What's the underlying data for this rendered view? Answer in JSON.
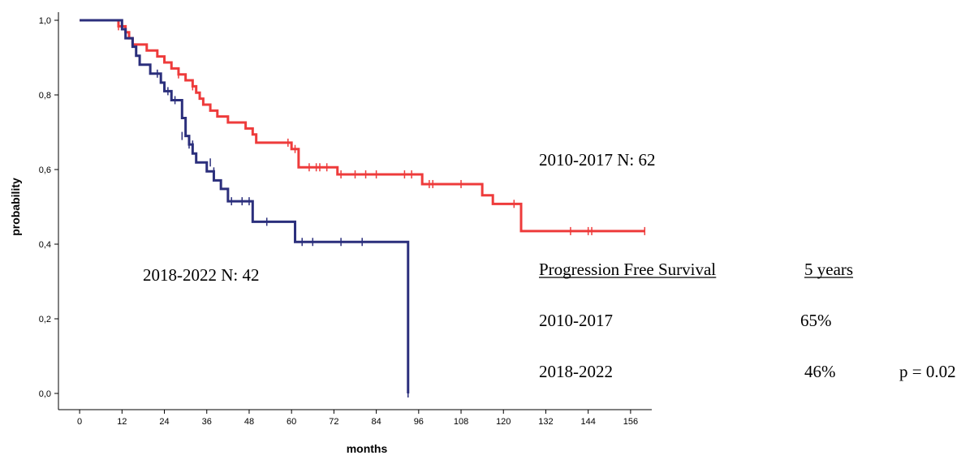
{
  "chart_data": {
    "type": "line",
    "xlabel": "months",
    "ylabel": "probability",
    "xlim": [
      -6,
      162
    ],
    "ylim": [
      0,
      1
    ],
    "xticks": [
      0,
      12,
      24,
      36,
      48,
      60,
      72,
      84,
      96,
      108,
      120,
      132,
      144,
      156
    ],
    "yticks": [
      0.0,
      0.2,
      0.4,
      0.6,
      0.8,
      1.0
    ],
    "ytick_labels": [
      "0,0",
      "0,2",
      "0,4",
      "0,6",
      "0,8",
      "1,0"
    ],
    "grid": false,
    "series": [
      {
        "name": "2010-2017",
        "label": "2010-2017  N: 62",
        "color": "#ee3b3b",
        "steps": [
          [
            0,
            1.0
          ],
          [
            11,
            0.984
          ],
          [
            13,
            0.968
          ],
          [
            14,
            0.952
          ],
          [
            15,
            0.935
          ],
          [
            19,
            0.919
          ],
          [
            22,
            0.903
          ],
          [
            24,
            0.887
          ],
          [
            26,
            0.871
          ],
          [
            28,
            0.855
          ],
          [
            30,
            0.839
          ],
          [
            32,
            0.823
          ],
          [
            33,
            0.806
          ],
          [
            34,
            0.79
          ],
          [
            35,
            0.774
          ],
          [
            37,
            0.758
          ],
          [
            39,
            0.742
          ],
          [
            42,
            0.726
          ],
          [
            47,
            0.71
          ],
          [
            49,
            0.694
          ],
          [
            50,
            0.672
          ],
          [
            60,
            0.655
          ],
          [
            62,
            0.606
          ],
          [
            73,
            0.587
          ],
          [
            97,
            0.561
          ],
          [
            114,
            0.531
          ],
          [
            117,
            0.508
          ],
          [
            125,
            0.435
          ],
          [
            160,
            0.435
          ]
        ],
        "censored": [
          [
            11,
            0.984
          ],
          [
            28,
            0.855
          ],
          [
            32,
            0.823
          ],
          [
            59,
            0.672
          ],
          [
            61,
            0.655
          ],
          [
            65,
            0.606
          ],
          [
            67,
            0.606
          ],
          [
            68,
            0.606
          ],
          [
            70,
            0.606
          ],
          [
            74,
            0.587
          ],
          [
            78,
            0.587
          ],
          [
            81,
            0.587
          ],
          [
            84,
            0.587
          ],
          [
            92,
            0.587
          ],
          [
            94,
            0.587
          ],
          [
            99,
            0.561
          ],
          [
            100,
            0.561
          ],
          [
            108,
            0.561
          ],
          [
            123,
            0.508
          ],
          [
            139,
            0.435
          ],
          [
            144,
            0.435
          ],
          [
            145,
            0.435
          ],
          [
            160,
            0.435
          ]
        ]
      },
      {
        "name": "2018-2022",
        "label": "2018-2022  N: 42",
        "color": "#2b2f7c",
        "steps": [
          [
            0,
            1.0
          ],
          [
            12,
            0.976
          ],
          [
            13,
            0.952
          ],
          [
            15,
            0.929
          ],
          [
            16,
            0.905
          ],
          [
            17,
            0.881
          ],
          [
            20,
            0.857
          ],
          [
            23,
            0.833
          ],
          [
            24,
            0.81
          ],
          [
            26,
            0.786
          ],
          [
            29,
            0.738
          ],
          [
            30,
            0.69
          ],
          [
            31,
            0.667
          ],
          [
            32,
            0.643
          ],
          [
            33,
            0.619
          ],
          [
            36,
            0.595
          ],
          [
            38,
            0.571
          ],
          [
            40,
            0.548
          ],
          [
            42,
            0.515
          ],
          [
            49,
            0.46
          ],
          [
            61,
            0.406
          ],
          [
            92,
            0.406
          ],
          [
            93,
            0.0
          ]
        ],
        "censored": [
          [
            22,
            0.857
          ],
          [
            25,
            0.81
          ],
          [
            27,
            0.786
          ],
          [
            29,
            0.69
          ],
          [
            31,
            0.667
          ],
          [
            32,
            0.667
          ],
          [
            37,
            0.619
          ],
          [
            38,
            0.595
          ],
          [
            43,
            0.515
          ],
          [
            46,
            0.515
          ],
          [
            48,
            0.515
          ],
          [
            53,
            0.46
          ],
          [
            63,
            0.406
          ],
          [
            66,
            0.406
          ],
          [
            74,
            0.406
          ],
          [
            80,
            0.406
          ],
          [
            93,
            0.0
          ]
        ]
      }
    ],
    "annotations": {
      "table_header_left": "Progression Free Survival",
      "table_header_right": "5 years",
      "row1_label": "2010-2017",
      "row1_value": "65%",
      "row2_label": "2018-2022",
      "row2_value": "46%",
      "p_value": "p = 0.02"
    }
  }
}
